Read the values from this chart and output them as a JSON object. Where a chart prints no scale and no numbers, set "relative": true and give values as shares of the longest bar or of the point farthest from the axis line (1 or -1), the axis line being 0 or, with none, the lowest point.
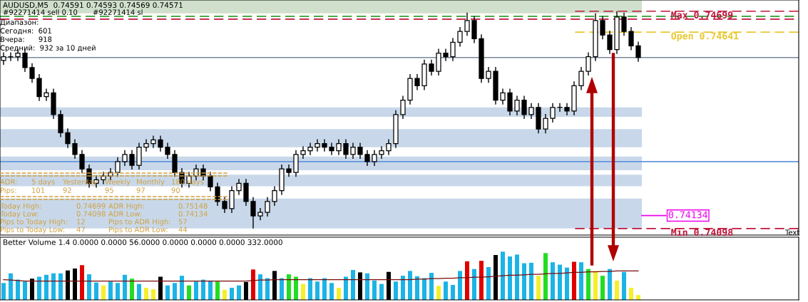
{
  "chart_data": [
    {
      "type": "candlestick",
      "title": "AUDUSD,M5  0.74591 0.74593 0.74569 0.74571",
      "color": "#000000",
      "categories": [
        null,
        null,
        null,
        null,
        null,
        null,
        null,
        null,
        null,
        null,
        null,
        null,
        null,
        null,
        null,
        null,
        null,
        null,
        null,
        null,
        null,
        null,
        null,
        null,
        null,
        null,
        null,
        null,
        null,
        null,
        null,
        null,
        null,
        null,
        null,
        null,
        null,
        null,
        null,
        null,
        null,
        null,
        null,
        null,
        null,
        null,
        null,
        null,
        null,
        null,
        null,
        null,
        null,
        null,
        null,
        null,
        null,
        null,
        null,
        null,
        null,
        null,
        null,
        null,
        null,
        null,
        null,
        null,
        null,
        null,
        null,
        null,
        null,
        null,
        null,
        null,
        null,
        null,
        null,
        null,
        null,
        null,
        null,
        null,
        null,
        null,
        null,
        null,
        null,
        null
      ],
      "ohlc": [
        [
          0.74563,
          0.74585,
          0.74551,
          0.74573
        ],
        [
          0.74573,
          0.74585,
          0.74561,
          0.74573
        ],
        [
          0.74573,
          0.74595,
          0.74561,
          0.74583
        ],
        [
          0.74583,
          0.74595,
          0.74531,
          0.74543
        ],
        [
          0.74543,
          0.74555,
          0.74501,
          0.74513
        ],
        [
          0.74513,
          0.74525,
          0.74451,
          0.74463
        ],
        [
          0.74463,
          0.74485,
          0.74451,
          0.74473
        ],
        [
          0.74473,
          0.74485,
          0.74401,
          0.74413
        ],
        [
          0.74413,
          0.74425,
          0.74351,
          0.74363
        ],
        [
          0.74363,
          0.74375,
          0.74321,
          0.74333
        ],
        [
          0.74333,
          0.74345,
          0.74291,
          0.74303
        ],
        [
          0.74303,
          0.74315,
          0.74251,
          0.74263
        ],
        [
          0.74263,
          0.74275,
          0.74211,
          0.74223
        ],
        [
          0.74223,
          0.74245,
          0.74211,
          0.74233
        ],
        [
          0.74233,
          0.74255,
          0.74221,
          0.74243
        ],
        [
          0.74243,
          0.74265,
          0.74231,
          0.74253
        ],
        [
          0.74253,
          0.74295,
          0.74241,
          0.74283
        ],
        [
          0.74283,
          0.74315,
          0.74271,
          0.74303
        ],
        [
          0.74303,
          0.74315,
          0.74261,
          0.74273
        ],
        [
          0.74273,
          0.74335,
          0.74261,
          0.74323
        ],
        [
          0.74323,
          0.74345,
          0.74311,
          0.74333
        ],
        [
          0.74333,
          0.74355,
          0.74321,
          0.74343
        ],
        [
          0.74343,
          0.74355,
          0.74311,
          0.74323
        ],
        [
          0.74323,
          0.74335,
          0.74291,
          0.74303
        ],
        [
          0.74303,
          0.74315,
          0.74241,
          0.74253
        ],
        [
          0.74253,
          0.74265,
          0.74211,
          0.74223
        ],
        [
          0.74223,
          0.74255,
          0.74211,
          0.74243
        ],
        [
          0.74243,
          0.74275,
          0.74231,
          0.74263
        ],
        [
          0.74263,
          0.74275,
          0.74231,
          0.74243
        ],
        [
          0.74243,
          0.74255,
          0.74201,
          0.74213
        ],
        [
          0.74213,
          0.74225,
          0.74161,
          0.74173
        ],
        [
          0.74173,
          0.74185,
          0.74141,
          0.74153
        ],
        [
          0.74153,
          0.74215,
          0.74141,
          0.74203
        ],
        [
          0.74203,
          0.74235,
          0.74191,
          0.74223
        ],
        [
          0.74223,
          0.74235,
          0.74161,
          0.74173
        ],
        [
          0.74173,
          0.74185,
          0.74098,
          0.74133
        ],
        [
          0.74133,
          0.74155,
          0.74121,
          0.74143
        ],
        [
          0.74143,
          0.74185,
          0.74131,
          0.74173
        ],
        [
          0.74173,
          0.74215,
          0.74161,
          0.74203
        ],
        [
          0.74203,
          0.74275,
          0.74191,
          0.74263
        ],
        [
          0.74263,
          0.74275,
          0.74241,
          0.74253
        ],
        [
          0.74253,
          0.74315,
          0.74241,
          0.74303
        ],
        [
          0.74303,
          0.74325,
          0.74291,
          0.74313
        ],
        [
          0.74313,
          0.74335,
          0.74301,
          0.74323
        ],
        [
          0.74323,
          0.74345,
          0.74311,
          0.74333
        ],
        [
          0.74333,
          0.74345,
          0.74311,
          0.74323
        ],
        [
          0.74323,
          0.74335,
          0.74301,
          0.74313
        ],
        [
          0.74313,
          0.74345,
          0.74301,
          0.74333
        ],
        [
          0.74333,
          0.74345,
          0.74291,
          0.74303
        ],
        [
          0.74303,
          0.74335,
          0.74291,
          0.74323
        ],
        [
          0.74323,
          0.74335,
          0.74291,
          0.74303
        ],
        [
          0.74303,
          0.74315,
          0.74271,
          0.74283
        ],
        [
          0.74283,
          0.74315,
          0.74271,
          0.74303
        ],
        [
          0.74303,
          0.74325,
          0.74291,
          0.74313
        ],
        [
          0.74313,
          0.74345,
          0.74301,
          0.74333
        ],
        [
          0.74333,
          0.74425,
          0.74321,
          0.74413
        ],
        [
          0.74413,
          0.74465,
          0.74401,
          0.74453
        ],
        [
          0.74453,
          0.74525,
          0.74441,
          0.74513
        ],
        [
          0.74513,
          0.74525,
          0.74481,
          0.74493
        ],
        [
          0.74493,
          0.74565,
          0.74481,
          0.74553
        ],
        [
          0.74553,
          0.74565,
          0.74521,
          0.74533
        ],
        [
          0.74533,
          0.74595,
          0.74521,
          0.74583
        ],
        [
          0.74583,
          0.74595,
          0.74561,
          0.74573
        ],
        [
          0.74573,
          0.74625,
          0.74561,
          0.74613
        ],
        [
          0.74613,
          0.74655,
          0.74601,
          0.74643
        ],
        [
          0.74643,
          0.74695,
          0.74631,
          0.74673
        ],
        [
          0.74673,
          0.74685,
          0.74611,
          0.74623
        ],
        [
          0.74623,
          0.74635,
          0.74501,
          0.74513
        ],
        [
          0.74513,
          0.74545,
          0.74501,
          0.74533
        ],
        [
          0.74533,
          0.74545,
          0.74441,
          0.74453
        ],
        [
          0.74453,
          0.74485,
          0.74441,
          0.74473
        ],
        [
          0.74473,
          0.74485,
          0.74411,
          0.74423
        ],
        [
          0.74423,
          0.74465,
          0.74411,
          0.74453
        ],
        [
          0.74453,
          0.74465,
          0.74401,
          0.74413
        ],
        [
          0.74413,
          0.74445,
          0.74401,
          0.74433
        ],
        [
          0.74433,
          0.74445,
          0.74361,
          0.74373
        ],
        [
          0.74373,
          0.74415,
          0.74361,
          0.74403
        ],
        [
          0.74403,
          0.74445,
          0.74391,
          0.74433
        ],
        [
          0.74433,
          0.74445,
          0.74421,
          0.74433
        ],
        [
          0.74433,
          0.74445,
          0.74411,
          0.74423
        ],
        [
          0.74423,
          0.74505,
          0.74411,
          0.74493
        ],
        [
          0.74493,
          0.74545,
          0.74481,
          0.74533
        ],
        [
          0.74533,
          0.74585,
          0.74521,
          0.74573
        ],
        [
          0.74573,
          0.74693,
          0.74561,
          0.74673
        ],
        [
          0.74673,
          0.74685,
          0.74621,
          0.74633
        ],
        [
          0.74633,
          0.74645,
          0.74581,
          0.74593
        ],
        [
          0.74593,
          0.74699,
          0.74581,
          0.74683
        ],
        [
          0.74683,
          0.74695,
          0.74631,
          0.74643
        ],
        [
          0.74643,
          0.74655,
          0.74591,
          0.74603
        ],
        [
          0.74603,
          0.74615,
          0.74559,
          0.74571
        ]
      ],
      "ylim": [
        0.7408,
        0.7473
      ],
      "tick_labels": false,
      "ref_lines": [
        {
          "axis": "y",
          "value": 0.74699,
          "label": "Max 0.74699",
          "color": "#c0143c",
          "line_style": "dashed"
        },
        {
          "axis": "y",
          "value": 0.74641,
          "label": "Open 0.74641",
          "color": "#e8c830",
          "line_style": "dashed"
        },
        {
          "axis": "y",
          "value": 0.74098,
          "label": "Min 0.74098",
          "color": "#c0143c",
          "line_style": "dashed"
        },
        {
          "axis": "y",
          "value": 0.74685,
          "color": "#2ca02c",
          "line_style": "dashed"
        },
        {
          "axis": "y",
          "value": 0.74677,
          "color": "#c0143c",
          "line_style": "dashed"
        },
        {
          "axis": "y",
          "value": 0.74571,
          "color": "#778899",
          "line_style": "solid"
        },
        {
          "axis": "y",
          "value": 0.74283,
          "color": "#6495dc",
          "line_style": "solid"
        },
        {
          "axis": "y",
          "value": 0.74134,
          "label": "0.74134",
          "color": "#ee00ee",
          "line_style": "solid"
        }
      ],
      "bands": [
        {
          "axis": "y",
          "from": 0.74693,
          "to": 0.7473,
          "color": "#d0e0cc"
        },
        {
          "axis": "y",
          "from": 0.74407,
          "to": 0.74433,
          "color": "#c8d8ea"
        },
        {
          "axis": "y",
          "from": 0.74323,
          "to": 0.74373,
          "color": "#c8d8ea"
        },
        {
          "axis": "y",
          "from": 0.74259,
          "to": 0.74297,
          "color": "#c8d8ea"
        },
        {
          "axis": "y",
          "from": 0.74215,
          "to": 0.74247,
          "color": "#c8d8ea"
        },
        {
          "axis": "y",
          "from": 0.74098,
          "to": 0.74181,
          "color": "#c8d8ea"
        }
      ],
      "annotations": [
        "#92271414 sell 0.10",
        "#92271414 sl",
        "Диапазон:",
        "Сегодня:  601",
        "Вчера:      918",
        "Средний:  932 за 10 дней",
        "ADR:",
        "5 days",
        "Yesterday",
        "Weekly",
        "Monthly",
        "180 days",
        "Pips:",
        "101",
        "92",
        "95",
        "97",
        "90",
        "Today High:",
        "0.74699",
        "ADR High:",
        "0.75148",
        "Today Low:",
        "0.74098",
        "ADR Low:",
        "0.74134",
        "Pips to Today High:",
        "12",
        "Pips to ADR High:",
        "57",
        "Pips to Today Low:",
        "47",
        "Pips to ADR Low:",
        "44",
        "Text"
      ],
      "grid": false,
      "legend": false
    },
    {
      "type": "bar",
      "title": "Better Volume 1.4 0.0000 0.0000 56.0000 0.0000 0.0000 0.0000 332.0000",
      "relative": true,
      "categories": [
        null,
        null,
        null,
        null,
        null,
        null,
        null,
        null,
        null,
        null,
        null,
        null,
        null,
        null,
        null,
        null,
        null,
        null,
        null,
        null,
        null,
        null,
        null,
        null,
        null,
        null,
        null,
        null,
        null,
        null,
        null,
        null,
        null,
        null,
        null,
        null,
        null,
        null,
        null,
        null,
        null,
        null,
        null,
        null,
        null,
        null,
        null,
        null,
        null,
        null,
        null,
        null,
        null,
        null,
        null,
        null,
        null,
        null,
        null,
        null,
        null,
        null,
        null,
        null,
        null,
        null,
        null,
        null,
        null,
        null,
        null,
        null,
        null,
        null,
        null,
        null,
        null,
        null,
        null,
        null,
        null,
        null,
        null,
        null,
        null,
        null,
        null,
        null,
        null,
        null
      ],
      "series": [
        {
          "type": "bar",
          "values": [
            0.35,
            0.55,
            0.42,
            0.38,
            0.44,
            0.48,
            0.52,
            0.55,
            0.55,
            0.61,
            0.65,
            0.72,
            0.53,
            0.36,
            0.3,
            0.38,
            0.35,
            0.52,
            0.44,
            0.33,
            0.25,
            0.22,
            0.48,
            0.3,
            0.35,
            0.5,
            0.3,
            0.38,
            0.42,
            0.4,
            0.38,
            0.21,
            0.25,
            0.3,
            0.37,
            0.63,
            0.53,
            0.45,
            0.6,
            0.45,
            0.53,
            0.48,
            0.33,
            0.45,
            0.38,
            0.45,
            0.35,
            0.25,
            0.48,
            0.62,
            0.57,
            0.55,
            0.4,
            0.33,
            0.58,
            0.38,
            0.5,
            0.6,
            0.49,
            0.45,
            0.56,
            0.29,
            0.38,
            0.31,
            0.6,
            0.8,
            0.64,
            0.81,
            0.68,
            0.93,
            1,
            0.9,
            0.94,
            0.76,
            0.77,
            0.5,
            0.97,
            0.78,
            0.73,
            0.67,
            0.79,
            0.78,
            0.64,
            0.6,
            0.5,
            0.64,
            0.4,
            0.58,
            0.25,
            0.1
          ],
          "colors": [
            "#1cb4e6",
            "#1cb4e6",
            "#1cb4e6",
            "#1cb4e6",
            "#000000",
            "#1cb4e6",
            "#1cb4e6",
            "#1cb4e6",
            "#1cb4e6",
            "#000000",
            "#000000",
            "#e00000",
            "#1cb4e6",
            "#1cb4e6",
            "#f4f02a",
            "#1cb4e6",
            "#1cb4e6",
            "#1cb4e6",
            "#22dd22",
            "#1cb4e6",
            "#f4f02a",
            "#f4f02a",
            "#000000",
            "#1cb4e6",
            "#1cb4e6",
            "#1cb4e6",
            "#22dd22",
            "#1cb4e6",
            "#1cb4e6",
            "#1cb4e6",
            "#22dd22",
            "#f4f02a",
            "#1cb4e6",
            "#1cb4e6",
            "#000000",
            "#e00000",
            "#1cb4e6",
            "#1cb4e6",
            "#000000",
            "#1cb4e6",
            "#22dd22",
            "#22dd22",
            "#f4f02a",
            "#1cb4e6",
            "#1cb4e6",
            "#1cb4e6",
            "#1cb4e6",
            "#f4f02a",
            "#1cb4e6",
            "#1cb4e6",
            "#000000",
            "#1cb4e6",
            "#1cb4e6",
            "#1cb4e6",
            "#000000",
            "#1cb4e6",
            "#1cb4e6",
            "#1cb4e6",
            "#1cb4e6",
            "#1cb4e6",
            "#1cb4e6",
            "#f4f02a",
            "#1cb4e6",
            "#1cb4e6",
            "#1cb4e6",
            "#e00000",
            "#1cb4e6",
            "#e00000",
            "#1cb4e6",
            "#000000",
            "#1cb4e6",
            "#1cb4e6",
            "#1cb4e6",
            "#1cb4e6",
            "#1cb4e6",
            "#f4f02a",
            "#22dd22",
            "#1cb4e6",
            "#1cb4e6",
            "#1cb4e6",
            "#e00000",
            "#1cb4e6",
            "#22dd22",
            "#f4f02a",
            "#22dd22",
            "#1cb4e6",
            "#f4f02a",
            "#1cb4e6",
            "#f4f02a",
            "#f4f02a"
          ]
        },
        {
          "type": "line",
          "color": "#7a0a0a",
          "values": [
            0.42,
            0.41,
            0.4,
            0.39,
            0.39,
            0.39,
            0.39,
            0.39,
            0.39,
            0.39,
            0.39,
            0.39,
            0.39,
            0.39,
            0.39,
            0.39,
            0.39,
            0.39,
            0.39,
            0.39,
            0.39,
            0.39,
            0.39,
            0.39,
            0.39,
            0.39,
            0.39,
            0.39,
            0.39,
            0.39,
            0.39,
            0.39,
            0.39,
            0.39,
            0.39,
            0.4,
            0.41,
            0.41,
            0.42,
            0.42,
            0.42,
            0.42,
            0.42,
            0.42,
            0.42,
            0.42,
            0.42,
            0.42,
            0.42,
            0.42,
            0.42,
            0.42,
            0.42,
            0.42,
            0.42,
            0.42,
            0.42,
            0.42,
            0.43,
            0.43,
            0.44,
            0.44,
            0.45,
            0.45,
            0.46,
            0.46,
            0.47,
            0.47,
            0.48,
            0.49,
            0.5,
            0.51,
            0.51,
            0.52,
            0.53,
            0.53,
            0.54,
            0.55,
            0.55,
            0.56,
            0.57,
            0.57,
            0.58,
            0.58,
            0.59,
            0.59,
            0.6,
            0.6,
            0.6,
            0.6
          ]
        }
      ],
      "tick_labels": false,
      "grid": false,
      "legend": false
    }
  ]
}
